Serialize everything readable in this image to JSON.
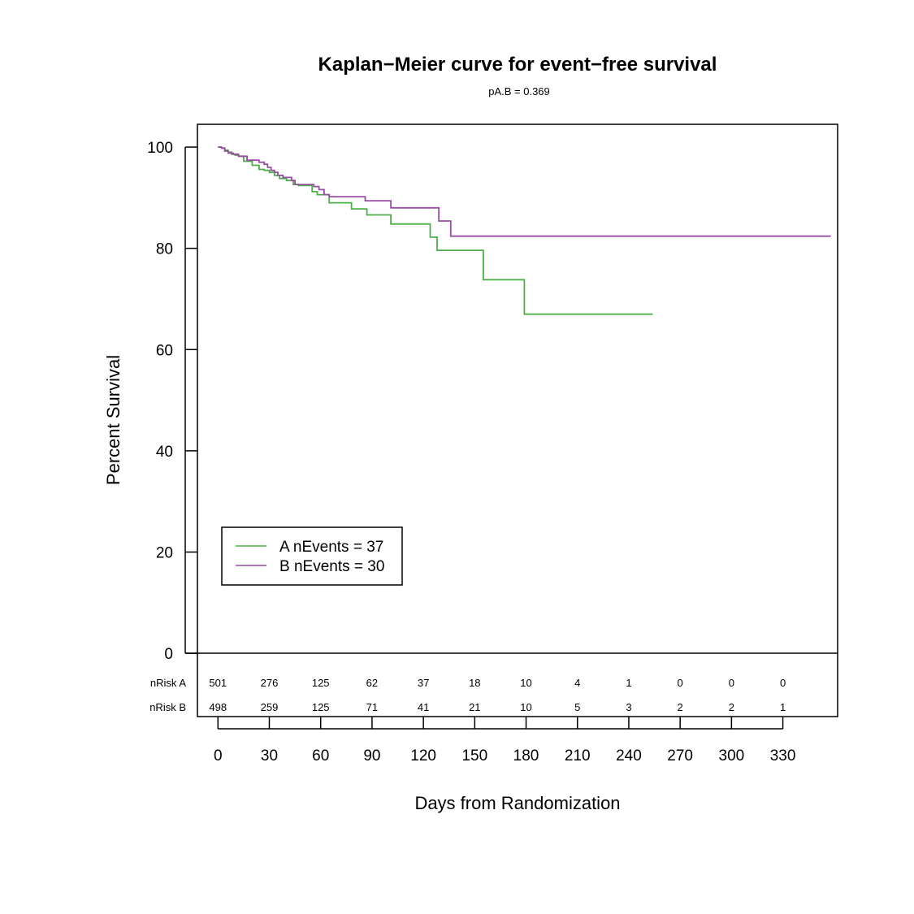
{
  "chart_data": {
    "type": "line",
    "title": "Kaplan−Meier curve for event−free survival",
    "subtitle": "pA.B = 0.369",
    "xlabel": "Days from Randomization",
    "ylabel": "Percent Survival",
    "xlim": [
      -12,
      362
    ],
    "ylim": [
      -12.5,
      104.5
    ],
    "x_ticks": [
      0,
      30,
      60,
      90,
      120,
      150,
      180,
      210,
      240,
      270,
      300,
      330
    ],
    "y_ticks": [
      0,
      20,
      40,
      60,
      80,
      100
    ],
    "grid": false,
    "legend_position": "bottom-left",
    "series": [
      {
        "name": "A nEvents = 37",
        "color": "#4daf4a",
        "points": [
          [
            0,
            100
          ],
          [
            2,
            99.8
          ],
          [
            4,
            99.4
          ],
          [
            6,
            99.0
          ],
          [
            8,
            98.6
          ],
          [
            10,
            98.4
          ],
          [
            12,
            98.2
          ],
          [
            15,
            97.2
          ],
          [
            20,
            96.4
          ],
          [
            24,
            95.6
          ],
          [
            27,
            95.4
          ],
          [
            30,
            95.0
          ],
          [
            33,
            94.4
          ],
          [
            36,
            93.8
          ],
          [
            40,
            93.4
          ],
          [
            44,
            92.6
          ],
          [
            47,
            92.4
          ],
          [
            55,
            91.2
          ],
          [
            58,
            90.6
          ],
          [
            65,
            89.0
          ],
          [
            78,
            87.8
          ],
          [
            87,
            86.6
          ],
          [
            101,
            84.8
          ],
          [
            124,
            82.2
          ],
          [
            128,
            79.6
          ],
          [
            155,
            73.8
          ],
          [
            179,
            67.0
          ],
          [
            254,
            67.0
          ]
        ]
      },
      {
        "name": "B nEvents = 30",
        "color": "#984ea3",
        "points": [
          [
            0,
            100
          ],
          [
            2,
            99.8
          ],
          [
            4,
            99.2
          ],
          [
            6,
            98.8
          ],
          [
            9,
            98.6
          ],
          [
            12,
            98.2
          ],
          [
            17,
            97.4
          ],
          [
            24,
            97.0
          ],
          [
            27,
            96.6
          ],
          [
            29,
            96.0
          ],
          [
            31,
            95.4
          ],
          [
            33,
            95.0
          ],
          [
            35,
            94.4
          ],
          [
            38,
            94.0
          ],
          [
            43,
            93.4
          ],
          [
            45,
            92.6
          ],
          [
            56,
            92.2
          ],
          [
            59,
            91.6
          ],
          [
            62,
            90.6
          ],
          [
            65,
            90.2
          ],
          [
            86,
            89.4
          ],
          [
            101,
            88.0
          ],
          [
            129,
            85.4
          ],
          [
            136,
            82.4
          ],
          [
            358,
            82.4
          ]
        ]
      }
    ],
    "risk_table": {
      "times": [
        0,
        30,
        60,
        90,
        120,
        150,
        180,
        210,
        240,
        270,
        300,
        330
      ],
      "rows": [
        {
          "label": "nRisk A",
          "values": [
            "501",
            "276",
            "125",
            "62",
            "37",
            "18",
            "10",
            "4",
            "1",
            "0",
            "0",
            "0"
          ]
        },
        {
          "label": "nRisk B",
          "values": [
            "498",
            "259",
            "125",
            "71",
            "41",
            "21",
            "10",
            "5",
            "3",
            "2",
            "2",
            "1"
          ]
        }
      ]
    }
  }
}
